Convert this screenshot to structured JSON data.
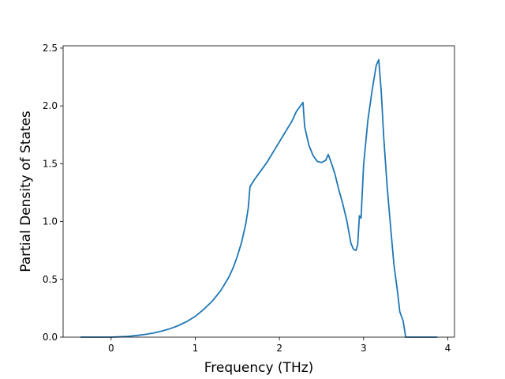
{
  "chart_data": {
    "type": "line",
    "xlabel": "Frequency (THz)",
    "ylabel": "Partial Density of States",
    "xlim": [
      -0.57,
      4.08
    ],
    "ylim": [
      0.0,
      2.52
    ],
    "xticks": [
      0,
      1,
      2,
      3,
      4
    ],
    "yticks": [
      0.0,
      0.5,
      1.0,
      1.5,
      2.0,
      2.5
    ],
    "xtick_labels": [
      "0",
      "1",
      "2",
      "3",
      "4"
    ],
    "ytick_labels": [
      "0.0",
      "0.5",
      "1.0",
      "1.5",
      "2.0",
      "2.5"
    ],
    "grid": false,
    "line_color": "#1f77b4",
    "series": [
      {
        "x": [
          -0.36,
          -0.2,
          0.0,
          0.1,
          0.2,
          0.3,
          0.4,
          0.5,
          0.6,
          0.7,
          0.8,
          0.9,
          1.0,
          1.1,
          1.2,
          1.3,
          1.4,
          1.45,
          1.5,
          1.55,
          1.6,
          1.63,
          1.65,
          1.7,
          1.75,
          1.8,
          1.85,
          1.9,
          1.95,
          2.0,
          2.05,
          2.1,
          2.15,
          2.2,
          2.25,
          2.28,
          2.3,
          2.35,
          2.4,
          2.45,
          2.5,
          2.55,
          2.58,
          2.62,
          2.66,
          2.7,
          2.75,
          2.8,
          2.85,
          2.88,
          2.91,
          2.93,
          2.95,
          2.97,
          3.0,
          3.05,
          3.1,
          3.15,
          3.18,
          3.21,
          3.24,
          3.28,
          3.32,
          3.36,
          3.4,
          3.43,
          3.47,
          3.5,
          3.55,
          3.7,
          3.87
        ],
        "y": [
          0.0,
          0.0,
          0.0,
          0.003,
          0.007,
          0.014,
          0.023,
          0.035,
          0.052,
          0.073,
          0.1,
          0.135,
          0.18,
          0.24,
          0.31,
          0.4,
          0.52,
          0.6,
          0.7,
          0.82,
          0.98,
          1.12,
          1.3,
          1.36,
          1.41,
          1.46,
          1.51,
          1.57,
          1.63,
          1.69,
          1.75,
          1.81,
          1.87,
          1.95,
          2.0,
          2.03,
          1.82,
          1.66,
          1.57,
          1.52,
          1.51,
          1.53,
          1.58,
          1.5,
          1.41,
          1.29,
          1.16,
          1.01,
          0.81,
          0.76,
          0.75,
          0.8,
          1.05,
          1.03,
          1.49,
          1.87,
          2.13,
          2.35,
          2.4,
          2.12,
          1.72,
          1.3,
          0.96,
          0.63,
          0.41,
          0.22,
          0.14,
          0.0,
          0.0,
          0.0,
          0.0
        ]
      }
    ]
  }
}
